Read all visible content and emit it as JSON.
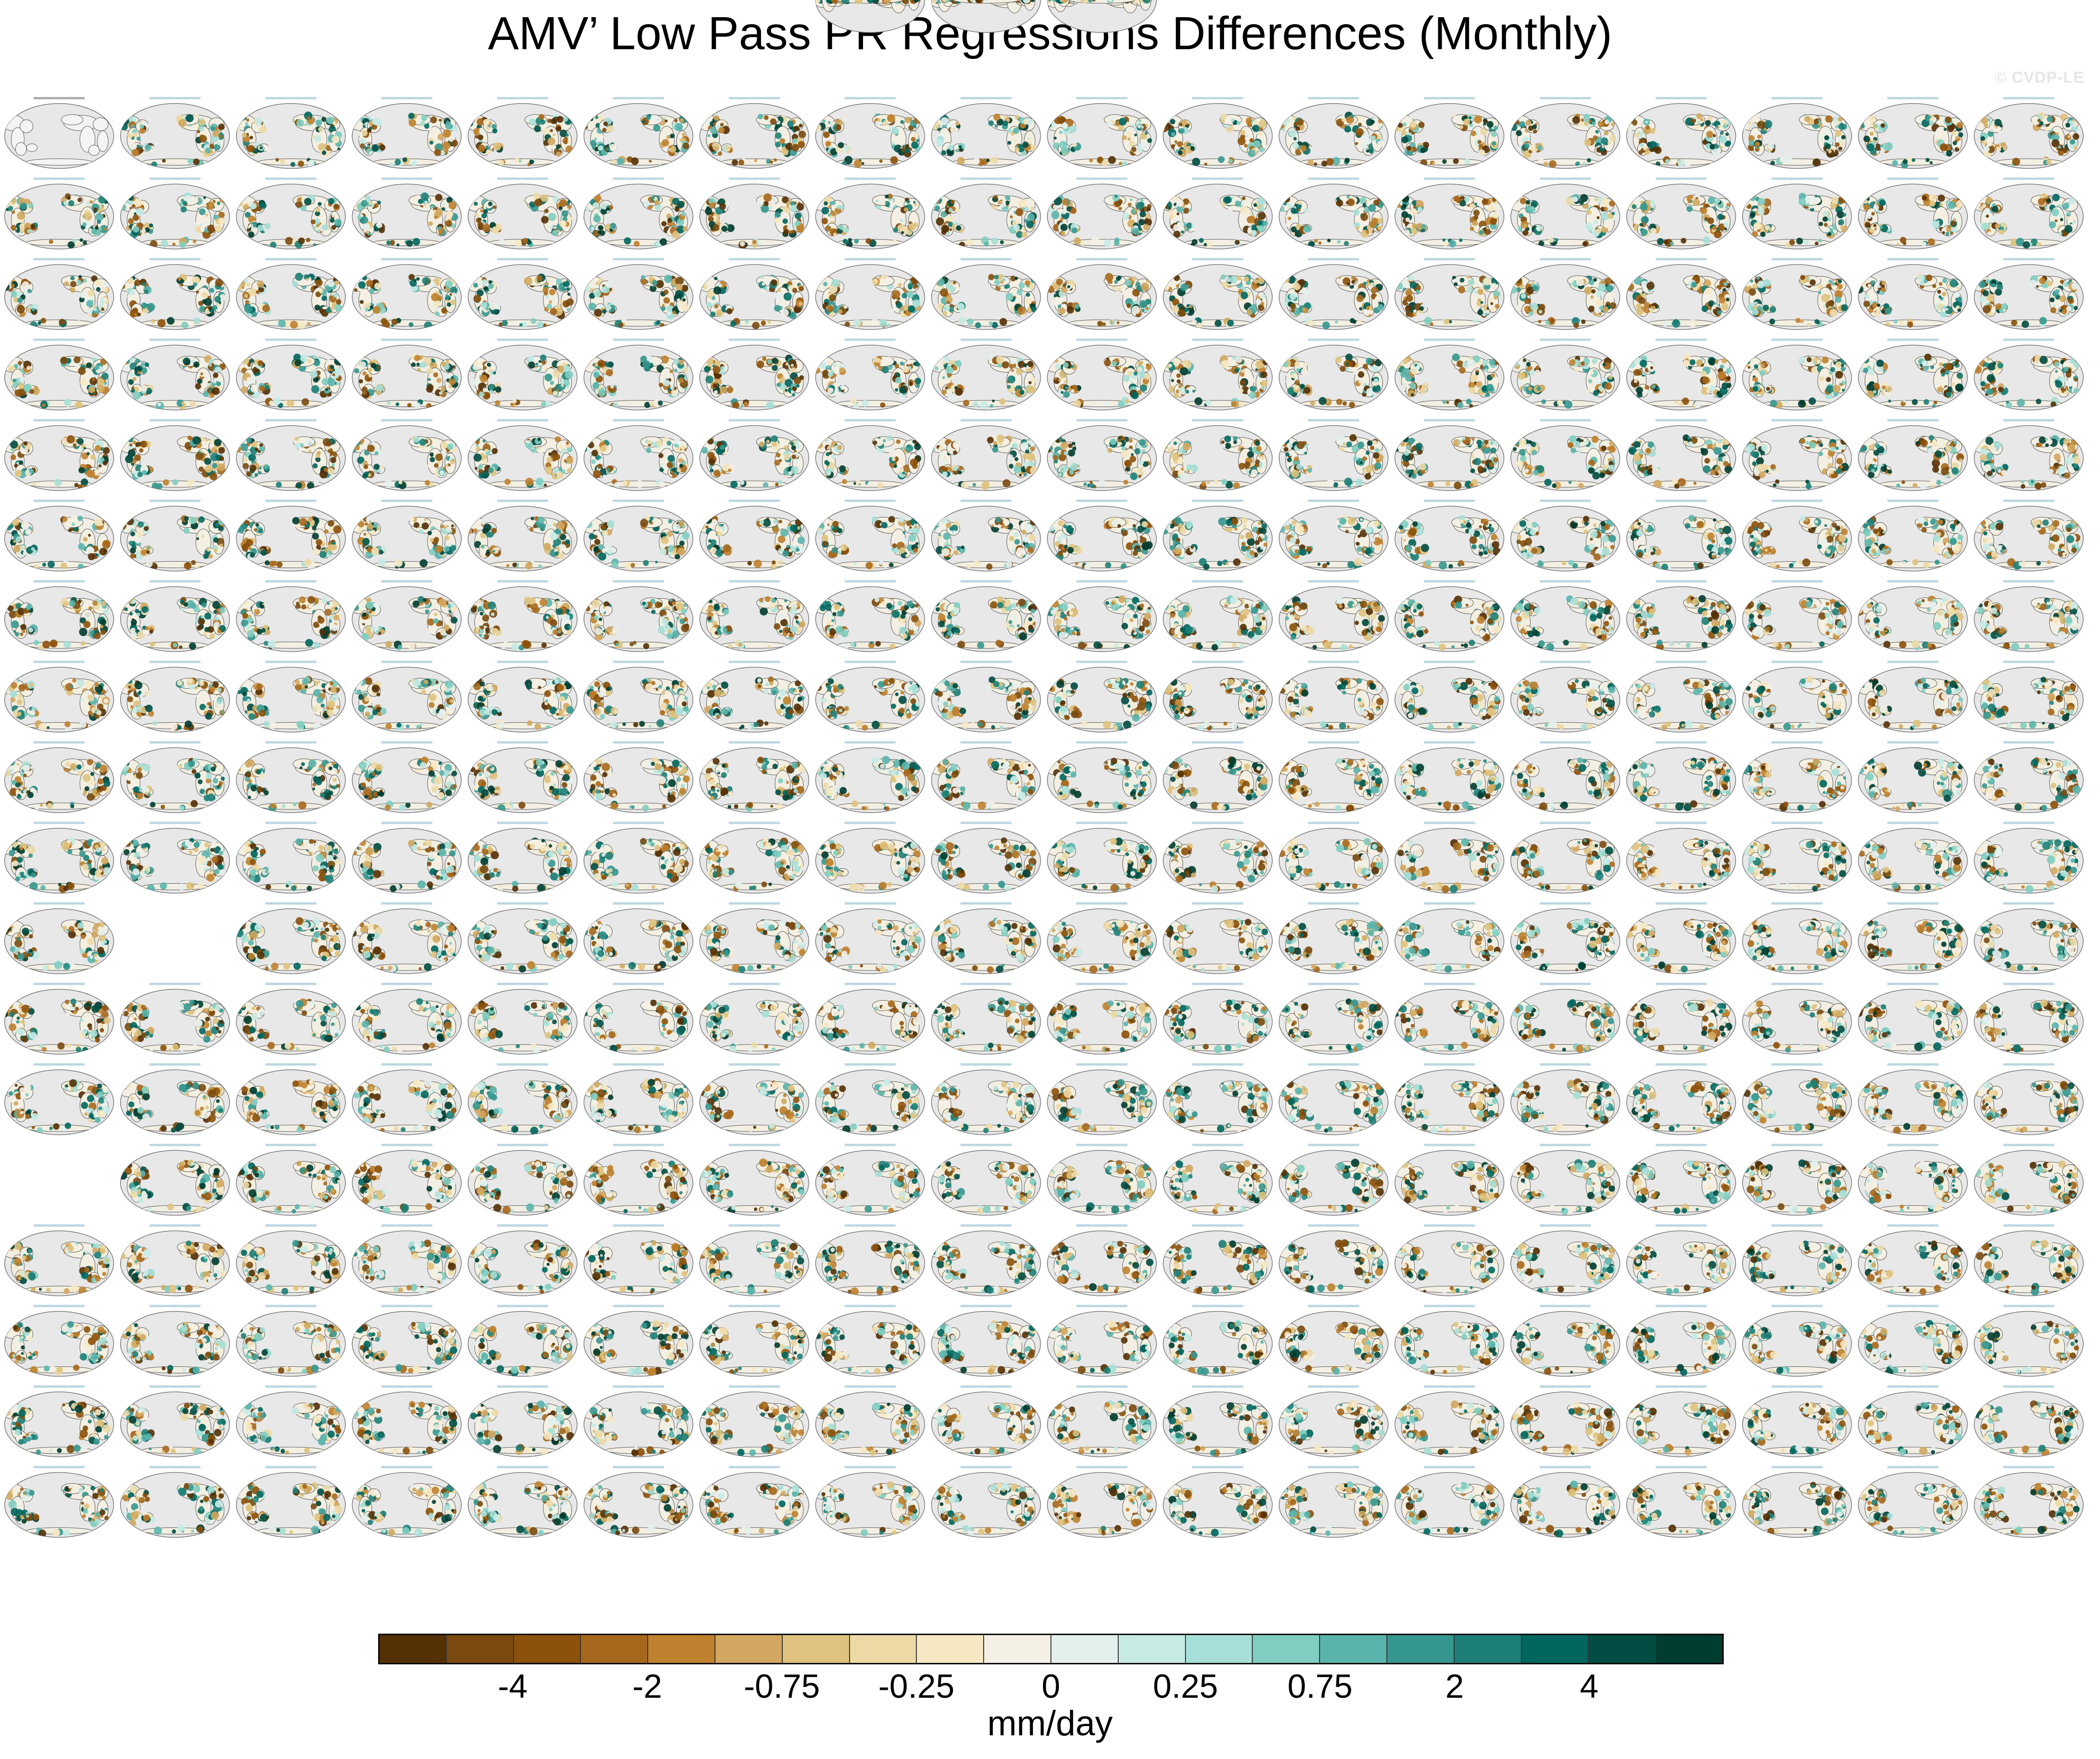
{
  "title": "AMV’ Low Pass PR Regressions Differences (Monthly)",
  "watermark": "© CVDP-LE",
  "colorbar": {
    "units": "mm/day",
    "tick_labels": [
      "-4",
      "-2",
      "-0.75",
      "-0.25",
      "0",
      "0.25",
      "0.75",
      "2",
      "4"
    ],
    "colors": [
      "#543005",
      "#7a4a0f",
      "#8c510a",
      "#a7681d",
      "#bf812d",
      "#d2a75f",
      "#dfc27d",
      "#ecd9a6",
      "#f6e8c3",
      "#f5f0e6",
      "#e4f0ee",
      "#c7eae5",
      "#a6dfd7",
      "#80cdc1",
      "#5ab4ac",
      "#35978f",
      "#1d7f77",
      "#01665e",
      "#014d43",
      "#003c30"
    ]
  },
  "panel_rows": [
    [
      0,
      1,
      1,
      1,
      1,
      1,
      1,
      1,
      1,
      1,
      1,
      1,
      1,
      1,
      1,
      1,
      1,
      1
    ],
    [
      1,
      1,
      1,
      1,
      1,
      1,
      1,
      1,
      1,
      1,
      1,
      1,
      1,
      1,
      1,
      1,
      1,
      1
    ],
    [
      1,
      1,
      1,
      1,
      1,
      1,
      1,
      1,
      1,
      1,
      1,
      1,
      1,
      1,
      1,
      1,
      1,
      1
    ],
    [
      1,
      1,
      1,
      1,
      1,
      1,
      1,
      1,
      1,
      1,
      1,
      1,
      1,
      1,
      1,
      1,
      1,
      1
    ],
    [
      1,
      1,
      1,
      1,
      1,
      1,
      1,
      1,
      1,
      1,
      1,
      1,
      1,
      1,
      1,
      1,
      1,
      1
    ],
    [
      1,
      1,
      1,
      1,
      1,
      1,
      1,
      1,
      1,
      1,
      1,
      1,
      1,
      1,
      1,
      1,
      1,
      1
    ],
    [
      1,
      1,
      1,
      1,
      1,
      1,
      1,
      1,
      1,
      1,
      1,
      1,
      1,
      1,
      1,
      1,
      1,
      1
    ],
    [
      1,
      1,
      1,
      1,
      1,
      1,
      1,
      1,
      1,
      1,
      1,
      1,
      1,
      1,
      1,
      1,
      1,
      1
    ],
    [
      1,
      1,
      1,
      1,
      1,
      1,
      1,
      1,
      1,
      1,
      1,
      1,
      1,
      1,
      1,
      1,
      1,
      1
    ],
    [
      1,
      1,
      1,
      1,
      1,
      1,
      1,
      1,
      1,
      1,
      1,
      1,
      1,
      1,
      1,
      1,
      1,
      1
    ],
    [
      1,
      -1,
      1,
      1,
      1,
      1,
      1,
      1,
      1,
      1,
      1,
      1,
      1,
      1,
      1,
      1,
      1,
      1
    ],
    [
      1,
      1,
      1,
      1,
      1,
      1,
      1,
      1,
      1,
      1,
      1,
      1,
      1,
      1,
      1,
      1,
      1,
      1
    ],
    [
      1,
      1,
      1,
      1,
      1,
      1,
      1,
      1,
      1,
      1,
      1,
      1,
      1,
      1,
      1,
      1,
      1,
      1
    ],
    [
      -1,
      1,
      1,
      1,
      1,
      1,
      1,
      1,
      1,
      1,
      1,
      1,
      1,
      1,
      1,
      1,
      1,
      1
    ],
    [
      1,
      1,
      1,
      1,
      1,
      1,
      1,
      1,
      1,
      1,
      1,
      1,
      1,
      1,
      1,
      1,
      1,
      1
    ],
    [
      1,
      1,
      1,
      1,
      1,
      1,
      1,
      1,
      1,
      1,
      1,
      1,
      1,
      1,
      1,
      1,
      1,
      1
    ],
    [
      1,
      1,
      1,
      1,
      1,
      1,
      1,
      1,
      1,
      1,
      1,
      1,
      1,
      1,
      1,
      1,
      1,
      1
    ],
    [
      1,
      1,
      1,
      1,
      1,
      1,
      1,
      1,
      1,
      1,
      1,
      1,
      1,
      1,
      1,
      1,
      1,
      1
    ],
    [
      -1,
      -1,
      -1,
      -1,
      -1,
      -1,
      -1,
      1,
      1,
      1,
      -1,
      -1,
      -1,
      -1,
      -1,
      -1,
      -1,
      -1
    ]
  ]
}
